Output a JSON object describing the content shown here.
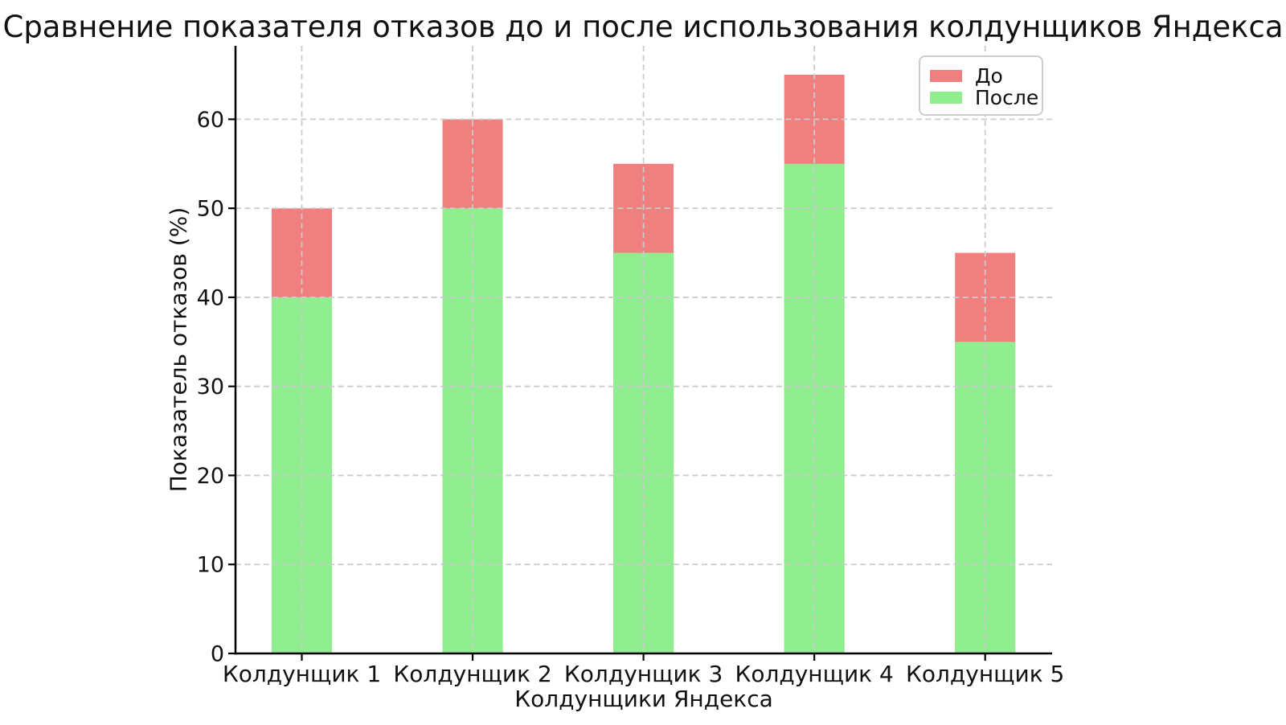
{
  "chart_data": {
    "type": "bar",
    "overlay": "series drawn at same x positions; 'До' bars are taller and visible behind 'После' bars",
    "title": "Сравнение показателя отказов до и после использования колдунщиков Яндекса",
    "xlabel": "Колдунщики Яндекса",
    "ylabel": "Показатель отказов (%)",
    "categories": [
      "Колдунщик 1",
      "Колдунщик 2",
      "Колдунщик 3",
      "Колдунщик 4",
      "Колдунщик 5"
    ],
    "series": [
      {
        "name": "До",
        "color": "#F08080",
        "values": [
          50,
          60,
          55,
          65,
          45
        ]
      },
      {
        "name": "После",
        "color": "#90EE90",
        "values": [
          40,
          50,
          45,
          55,
          35
        ]
      }
    ],
    "ylim": [
      0,
      68.25
    ],
    "yticks": [
      0,
      10,
      20,
      30,
      40,
      50,
      60
    ],
    "grid": true,
    "grid_style": "dashed",
    "grid_color": "#cbcbcb",
    "grid_above_bars": true,
    "legend_position": "top-right",
    "spine_color": "#000000",
    "text_color": "#111111",
    "background_color": "#ffffff"
  }
}
